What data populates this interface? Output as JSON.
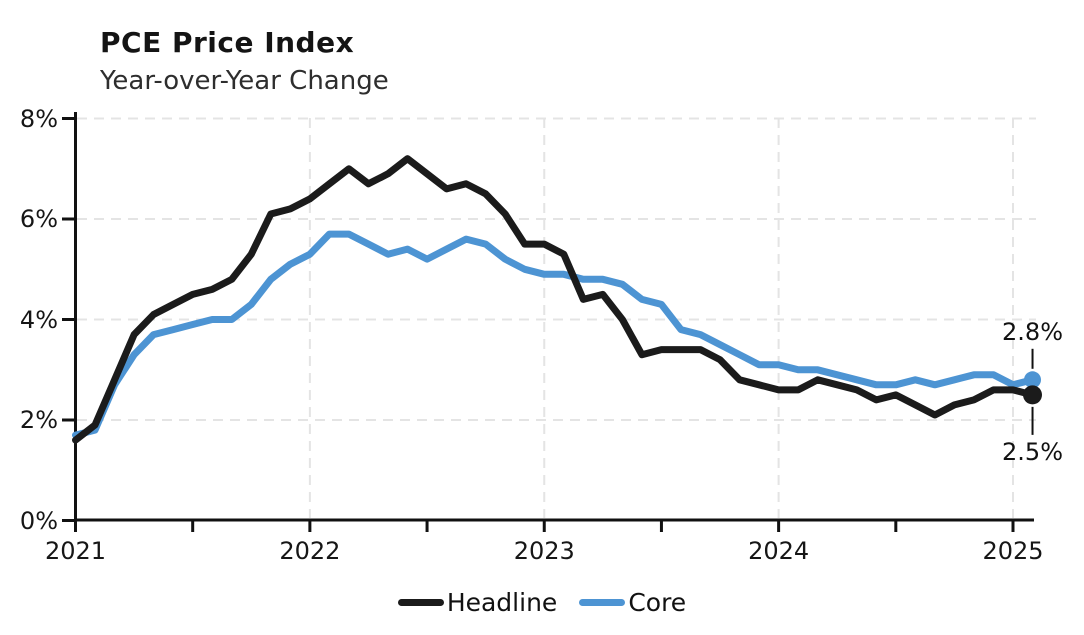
{
  "chart_data": {
    "type": "line",
    "title": "PCE Price Index",
    "subtitle": "Year-over-Year Change",
    "xlabel": "",
    "ylabel": "",
    "ylim": [
      0,
      8
    ],
    "y_tick_values": [
      0,
      2,
      4,
      6,
      8
    ],
    "y_tick_labels": [
      "0%",
      "2%",
      "4%",
      "6%",
      "8%"
    ],
    "x_label_ticks": [
      "2021",
      "2022",
      "2023",
      "2024",
      "2025"
    ],
    "grid": {
      "style": "light-gray-dashed",
      "horizontal_at": [
        2,
        4,
        6,
        8
      ],
      "vertical_at_years": [
        "2022",
        "2023",
        "2024",
        "2025"
      ]
    },
    "legend": {
      "position": "bottom-center",
      "entries": [
        "Headline",
        "Core"
      ]
    },
    "x": [
      "2021-01",
      "2021-02",
      "2021-03",
      "2021-04",
      "2021-05",
      "2021-06",
      "2021-07",
      "2021-08",
      "2021-09",
      "2021-10",
      "2021-11",
      "2021-12",
      "2022-01",
      "2022-02",
      "2022-03",
      "2022-04",
      "2022-05",
      "2022-06",
      "2022-07",
      "2022-08",
      "2022-09",
      "2022-10",
      "2022-11",
      "2022-12",
      "2023-01",
      "2023-02",
      "2023-03",
      "2023-04",
      "2023-05",
      "2023-06",
      "2023-07",
      "2023-08",
      "2023-09",
      "2023-10",
      "2023-11",
      "2023-12",
      "2024-01",
      "2024-02",
      "2024-03",
      "2024-04",
      "2024-05",
      "2024-06",
      "2024-07",
      "2024-08",
      "2024-09",
      "2024-10",
      "2024-11",
      "2024-12",
      "2025-01",
      "2025-02"
    ],
    "series": [
      {
        "name": "Headline",
        "color": "#1b1b1b",
        "values": [
          1.6,
          1.9,
          2.8,
          3.7,
          4.1,
          4.3,
          4.5,
          4.6,
          4.8,
          5.3,
          6.1,
          6.2,
          6.4,
          6.7,
          7.0,
          6.7,
          6.9,
          7.2,
          6.9,
          6.6,
          6.7,
          6.5,
          6.1,
          5.5,
          5.5,
          5.3,
          4.4,
          4.5,
          4.0,
          3.3,
          3.4,
          3.4,
          3.4,
          3.2,
          2.8,
          2.7,
          2.6,
          2.6,
          2.8,
          2.7,
          2.6,
          2.4,
          2.5,
          2.3,
          2.1,
          2.3,
          2.4,
          2.6,
          2.6,
          2.5
        ]
      },
      {
        "name": "Core",
        "color": "#4d94d3",
        "values": [
          1.7,
          1.8,
          2.7,
          3.3,
          3.7,
          3.8,
          3.9,
          4.0,
          4.0,
          4.3,
          4.8,
          5.1,
          5.3,
          5.7,
          5.7,
          5.5,
          5.3,
          5.4,
          5.2,
          5.4,
          5.6,
          5.5,
          5.2,
          5.0,
          4.9,
          4.9,
          4.8,
          4.8,
          4.7,
          4.4,
          4.3,
          3.8,
          3.7,
          3.5,
          3.3,
          3.1,
          3.1,
          3.0,
          3.0,
          2.9,
          2.8,
          2.7,
          2.7,
          2.8,
          2.7,
          2.8,
          2.9,
          2.9,
          2.7,
          2.8
        ]
      }
    ],
    "annotations": [
      {
        "text": "2.8%",
        "series": "Core",
        "x": "2025-02",
        "value": 2.8
      },
      {
        "text": "2.5%",
        "series": "Headline",
        "x": "2025-02",
        "value": 2.5
      }
    ]
  },
  "colors": {
    "headline": "#1b1b1b",
    "core": "#4d94d3",
    "grid": "#e4e4e4",
    "axis": "#111111",
    "text": "#161616"
  }
}
